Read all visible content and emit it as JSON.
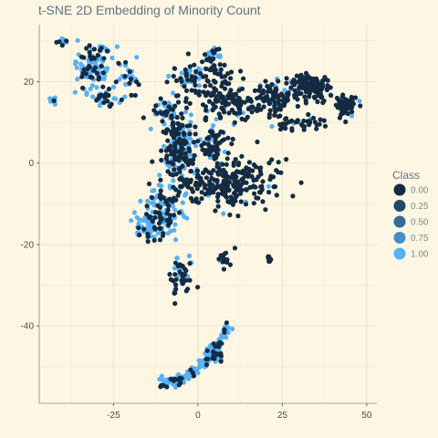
{
  "chart_data": {
    "type": "scatter",
    "title": "t-SNE 2D Embedding of Minority Count",
    "xlabel": "",
    "ylabel": "",
    "xlim": [
      -47,
      53
    ],
    "ylim": [
      -59,
      34
    ],
    "x_ticks": [
      -25,
      0,
      25,
      50
    ],
    "y_ticks": [
      -40,
      -20,
      0,
      20
    ],
    "x_tick_labels": [
      "-25",
      "0",
      "25",
      "50"
    ],
    "y_tick_labels": [
      "-40",
      "-20",
      "0",
      "20"
    ],
    "grid": true,
    "legend": {
      "title": "Class",
      "position": "right",
      "entries": [
        {
          "label": "0.00",
          "color": "#132b43"
        },
        {
          "label": "0.25",
          "color": "#23486c"
        },
        {
          "label": "0.50",
          "color": "#336a98"
        },
        {
          "label": "0.75",
          "color": "#448dc6"
        },
        {
          "label": "1.00",
          "color": "#56b1f7"
        }
      ]
    },
    "colors": {
      "class_0": "#132b43",
      "class_1": "#56b1f7"
    },
    "clusters": [
      {
        "cx": -40,
        "cy": 30,
        "rx": 1.5,
        "ry": 1,
        "n": 12,
        "c0": 0.3
      },
      {
        "cx": -43,
        "cy": 15.5,
        "rx": 1,
        "ry": 1,
        "n": 8,
        "c0": 0.2
      },
      {
        "cx": -31,
        "cy": 24,
        "rx": 5,
        "ry": 4,
        "n": 110,
        "c0": 0.3
      },
      {
        "cx": -28,
        "cy": 16,
        "rx": 4,
        "ry": 2,
        "n": 35,
        "c0": 0.3
      },
      {
        "cx": -20,
        "cy": 21,
        "rx": 3,
        "ry": 3,
        "n": 22,
        "c0": 0.5
      },
      {
        "cx": -10,
        "cy": 13,
        "rx": 3,
        "ry": 2,
        "n": 30,
        "c0": 0.4
      },
      {
        "cx": -4,
        "cy": 20,
        "rx": 4,
        "ry": 5,
        "n": 50,
        "c0": 0.6
      },
      {
        "cx": 5,
        "cy": 17,
        "rx": 5,
        "ry": 7,
        "n": 90,
        "c0": 0.85
      },
      {
        "cx": 4,
        "cy": 25,
        "rx": 4,
        "ry": 3,
        "n": 35,
        "c0": 0.5
      },
      {
        "cx": 12,
        "cy": 15,
        "rx": 4,
        "ry": 4,
        "n": 55,
        "c0": 0.9
      },
      {
        "cx": 22,
        "cy": 16,
        "rx": 6,
        "ry": 4,
        "n": 100,
        "c0": 0.9
      },
      {
        "cx": 33,
        "cy": 19,
        "rx": 5,
        "ry": 2.5,
        "n": 120,
        "c0": 0.95
      },
      {
        "cx": 44,
        "cy": 14,
        "rx": 3,
        "ry": 2,
        "n": 70,
        "c0": 0.95
      },
      {
        "cx": 30,
        "cy": 10,
        "rx": 6,
        "ry": 1.5,
        "n": 40,
        "c0": 0.95
      },
      {
        "cx": -6,
        "cy": 4,
        "rx": 4,
        "ry": 8,
        "n": 180,
        "c0": 0.55
      },
      {
        "cx": 5,
        "cy": 5,
        "rx": 4,
        "ry": 4,
        "n": 60,
        "c0": 0.7
      },
      {
        "cx": 8,
        "cy": -5,
        "rx": 12,
        "ry": 5,
        "n": 260,
        "c0": 0.95
      },
      {
        "cx": -10,
        "cy": -12,
        "rx": 5,
        "ry": 6,
        "n": 120,
        "c0": 0.35
      },
      {
        "cx": -15,
        "cy": -16,
        "rx": 3,
        "ry": 3,
        "n": 45,
        "c0": 0.2
      },
      {
        "cx": -5,
        "cy": -28,
        "rx": 3,
        "ry": 5,
        "n": 45,
        "c0": 0.7
      },
      {
        "cx": 8,
        "cy": -24,
        "rx": 2,
        "ry": 3,
        "n": 15,
        "c0": 0.8
      },
      {
        "cx": 21,
        "cy": -23.5,
        "rx": 0.7,
        "ry": 0.8,
        "n": 10,
        "c0": 1.0
      },
      {
        "cx": 5,
        "cy": -47,
        "rx": 2,
        "ry": 2,
        "n": 25,
        "c0": 0.3
      }
    ]
  }
}
